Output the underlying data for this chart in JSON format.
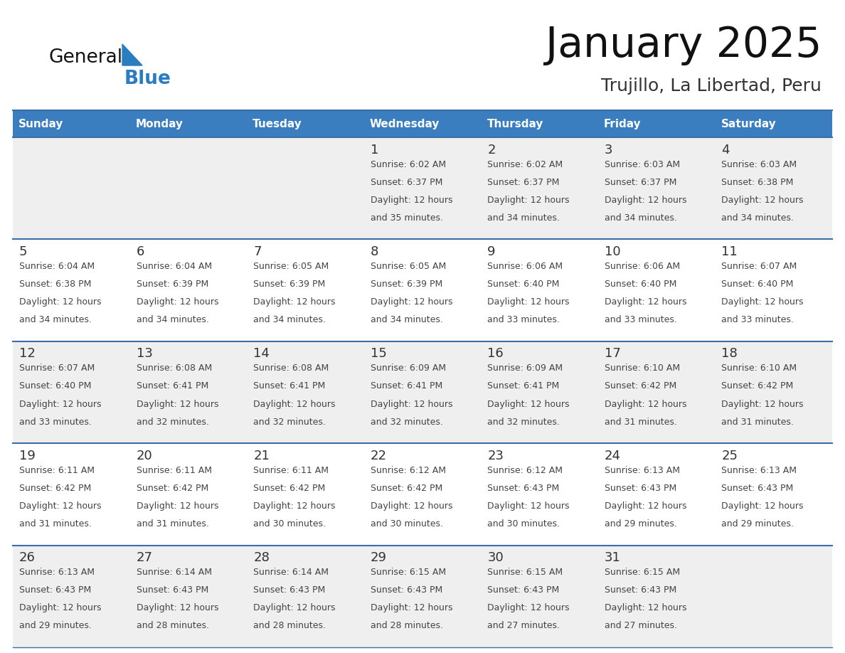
{
  "title": "January 2025",
  "subtitle": "Trujillo, La Libertad, Peru",
  "days_of_week": [
    "Sunday",
    "Monday",
    "Tuesday",
    "Wednesday",
    "Thursday",
    "Friday",
    "Saturday"
  ],
  "header_bg": "#3A7EBF",
  "header_text": "#FFFFFF",
  "row_bg_light": "#EFEFEF",
  "row_bg_white": "#FFFFFF",
  "separator_color": "#3A6EA8",
  "text_color": "#444444",
  "day_num_color": "#333333",
  "title_color": "#111111",
  "subtitle_color": "#333333",
  "logo_general_color": "#111111",
  "logo_blue_color": "#2A7DC0",
  "logo_triangle_color": "#2A7DC0",
  "calendar_data": [
    [
      null,
      null,
      null,
      {
        "day": 1,
        "sunrise": "6:02 AM",
        "sunset": "6:37 PM",
        "daylight": "12 hours\nand 35 minutes."
      },
      {
        "day": 2,
        "sunrise": "6:02 AM",
        "sunset": "6:37 PM",
        "daylight": "12 hours\nand 34 minutes."
      },
      {
        "day": 3,
        "sunrise": "6:03 AM",
        "sunset": "6:37 PM",
        "daylight": "12 hours\nand 34 minutes."
      },
      {
        "day": 4,
        "sunrise": "6:03 AM",
        "sunset": "6:38 PM",
        "daylight": "12 hours\nand 34 minutes."
      }
    ],
    [
      {
        "day": 5,
        "sunrise": "6:04 AM",
        "sunset": "6:38 PM",
        "daylight": "12 hours\nand 34 minutes."
      },
      {
        "day": 6,
        "sunrise": "6:04 AM",
        "sunset": "6:39 PM",
        "daylight": "12 hours\nand 34 minutes."
      },
      {
        "day": 7,
        "sunrise": "6:05 AM",
        "sunset": "6:39 PM",
        "daylight": "12 hours\nand 34 minutes."
      },
      {
        "day": 8,
        "sunrise": "6:05 AM",
        "sunset": "6:39 PM",
        "daylight": "12 hours\nand 34 minutes."
      },
      {
        "day": 9,
        "sunrise": "6:06 AM",
        "sunset": "6:40 PM",
        "daylight": "12 hours\nand 33 minutes."
      },
      {
        "day": 10,
        "sunrise": "6:06 AM",
        "sunset": "6:40 PM",
        "daylight": "12 hours\nand 33 minutes."
      },
      {
        "day": 11,
        "sunrise": "6:07 AM",
        "sunset": "6:40 PM",
        "daylight": "12 hours\nand 33 minutes."
      }
    ],
    [
      {
        "day": 12,
        "sunrise": "6:07 AM",
        "sunset": "6:40 PM",
        "daylight": "12 hours\nand 33 minutes."
      },
      {
        "day": 13,
        "sunrise": "6:08 AM",
        "sunset": "6:41 PM",
        "daylight": "12 hours\nand 32 minutes."
      },
      {
        "day": 14,
        "sunrise": "6:08 AM",
        "sunset": "6:41 PM",
        "daylight": "12 hours\nand 32 minutes."
      },
      {
        "day": 15,
        "sunrise": "6:09 AM",
        "sunset": "6:41 PM",
        "daylight": "12 hours\nand 32 minutes."
      },
      {
        "day": 16,
        "sunrise": "6:09 AM",
        "sunset": "6:41 PM",
        "daylight": "12 hours\nand 32 minutes."
      },
      {
        "day": 17,
        "sunrise": "6:10 AM",
        "sunset": "6:42 PM",
        "daylight": "12 hours\nand 31 minutes."
      },
      {
        "day": 18,
        "sunrise": "6:10 AM",
        "sunset": "6:42 PM",
        "daylight": "12 hours\nand 31 minutes."
      }
    ],
    [
      {
        "day": 19,
        "sunrise": "6:11 AM",
        "sunset": "6:42 PM",
        "daylight": "12 hours\nand 31 minutes."
      },
      {
        "day": 20,
        "sunrise": "6:11 AM",
        "sunset": "6:42 PM",
        "daylight": "12 hours\nand 31 minutes."
      },
      {
        "day": 21,
        "sunrise": "6:11 AM",
        "sunset": "6:42 PM",
        "daylight": "12 hours\nand 30 minutes."
      },
      {
        "day": 22,
        "sunrise": "6:12 AM",
        "sunset": "6:42 PM",
        "daylight": "12 hours\nand 30 minutes."
      },
      {
        "day": 23,
        "sunrise": "6:12 AM",
        "sunset": "6:43 PM",
        "daylight": "12 hours\nand 30 minutes."
      },
      {
        "day": 24,
        "sunrise": "6:13 AM",
        "sunset": "6:43 PM",
        "daylight": "12 hours\nand 29 minutes."
      },
      {
        "day": 25,
        "sunrise": "6:13 AM",
        "sunset": "6:43 PM",
        "daylight": "12 hours\nand 29 minutes."
      }
    ],
    [
      {
        "day": 26,
        "sunrise": "6:13 AM",
        "sunset": "6:43 PM",
        "daylight": "12 hours\nand 29 minutes."
      },
      {
        "day": 27,
        "sunrise": "6:14 AM",
        "sunset": "6:43 PM",
        "daylight": "12 hours\nand 28 minutes."
      },
      {
        "day": 28,
        "sunrise": "6:14 AM",
        "sunset": "6:43 PM",
        "daylight": "12 hours\nand 28 minutes."
      },
      {
        "day": 29,
        "sunrise": "6:15 AM",
        "sunset": "6:43 PM",
        "daylight": "12 hours\nand 28 minutes."
      },
      {
        "day": 30,
        "sunrise": "6:15 AM",
        "sunset": "6:43 PM",
        "daylight": "12 hours\nand 27 minutes."
      },
      {
        "day": 31,
        "sunrise": "6:15 AM",
        "sunset": "6:43 PM",
        "daylight": "12 hours\nand 27 minutes."
      },
      null
    ]
  ]
}
